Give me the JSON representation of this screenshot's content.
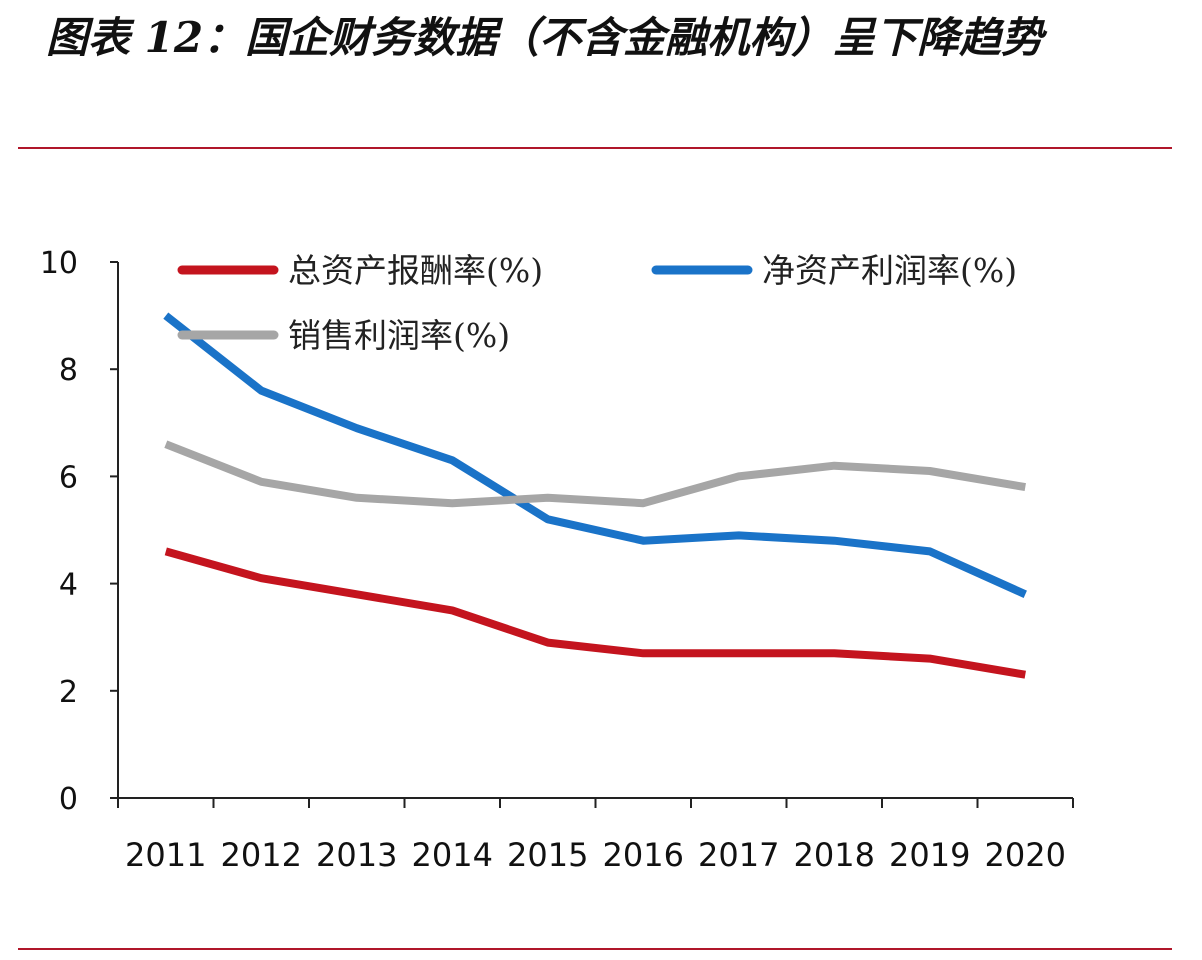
{
  "title": "图表 12：国企财务数据（不含金融机构）呈下降趋势",
  "colors": {
    "rule": "#b0162a",
    "series": [
      "#c4141e",
      "#1a73c8",
      "#a6a6a6"
    ]
  },
  "chart_data": {
    "type": "line",
    "title": "图表 12：国企财务数据（不含金融机构）呈下降趋势",
    "xlabel": "",
    "ylabel": "",
    "x": [
      "2011",
      "2012",
      "2013",
      "2014",
      "2015",
      "2016",
      "2017",
      "2018",
      "2019",
      "2020"
    ],
    "ylim": [
      0,
      10
    ],
    "yticks": [
      0,
      2,
      4,
      6,
      8,
      10
    ],
    "grid": false,
    "legend_position": "top",
    "series": [
      {
        "name": "总资产报酬率(%)",
        "values": [
          4.6,
          4.1,
          3.8,
          3.5,
          2.9,
          2.7,
          2.7,
          2.7,
          2.6,
          2.3
        ]
      },
      {
        "name": "净资产利润率(%)",
        "values": [
          9.0,
          7.6,
          6.9,
          6.3,
          5.2,
          4.8,
          4.9,
          4.8,
          4.6,
          3.8
        ]
      },
      {
        "name": "销售利润率(%)",
        "values": [
          6.6,
          5.9,
          5.6,
          5.5,
          5.6,
          5.5,
          6.0,
          6.2,
          6.1,
          5.8
        ]
      }
    ]
  }
}
